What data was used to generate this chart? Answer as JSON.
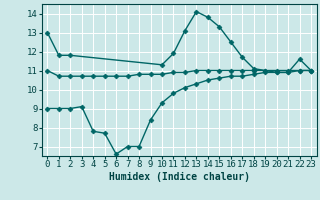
{
  "xlabel": "Humidex (Indice chaleur)",
  "ylabel": "",
  "bg_color": "#cce8e8",
  "grid_color": "#ffffff",
  "line_color": "#006666",
  "ylim": [
    6.5,
    14.5
  ],
  "xlim": [
    -0.5,
    23.5
  ],
  "yticks": [
    7,
    8,
    9,
    10,
    11,
    12,
    13,
    14
  ],
  "xticks": [
    0,
    1,
    2,
    3,
    4,
    5,
    6,
    7,
    8,
    9,
    10,
    11,
    12,
    13,
    14,
    15,
    16,
    17,
    18,
    19,
    20,
    21,
    22,
    23
  ],
  "line1_x": [
    0,
    1,
    2,
    10,
    11,
    12,
    13,
    14,
    15,
    16,
    17,
    18,
    19,
    20,
    21,
    22,
    23
  ],
  "line1_y": [
    13.0,
    11.8,
    11.8,
    11.3,
    11.9,
    13.1,
    14.1,
    13.8,
    13.3,
    12.5,
    11.7,
    11.1,
    11.0,
    10.9,
    10.9,
    11.6,
    11.0
  ],
  "line2_x": [
    0,
    1,
    2,
    3,
    4,
    5,
    6,
    7,
    8,
    9,
    10,
    11,
    12,
    13,
    14,
    15,
    16,
    17,
    18,
    19,
    20,
    21,
    22,
    23
  ],
  "line2_y": [
    11.0,
    10.7,
    10.7,
    10.7,
    10.7,
    10.7,
    10.7,
    10.7,
    10.8,
    10.8,
    10.8,
    10.9,
    10.9,
    11.0,
    11.0,
    11.0,
    11.0,
    11.0,
    11.0,
    11.0,
    11.0,
    11.0,
    11.0,
    11.0
  ],
  "line3_x": [
    0,
    1,
    2,
    3,
    4,
    5,
    6,
    7,
    8,
    9,
    10,
    11,
    12,
    13,
    14,
    15,
    16,
    17,
    18,
    19,
    20,
    21,
    22,
    23
  ],
  "line3_y": [
    9.0,
    9.0,
    9.0,
    9.1,
    7.8,
    7.7,
    6.6,
    7.0,
    7.0,
    8.4,
    9.3,
    9.8,
    10.1,
    10.3,
    10.5,
    10.6,
    10.7,
    10.7,
    10.8,
    10.9,
    10.9,
    10.9,
    11.0,
    11.0
  ],
  "marker": "D",
  "markersize": 2.5,
  "linewidth": 1.0,
  "font_color": "#004444",
  "xlabel_fontsize": 7,
  "tick_fontsize": 6.5
}
